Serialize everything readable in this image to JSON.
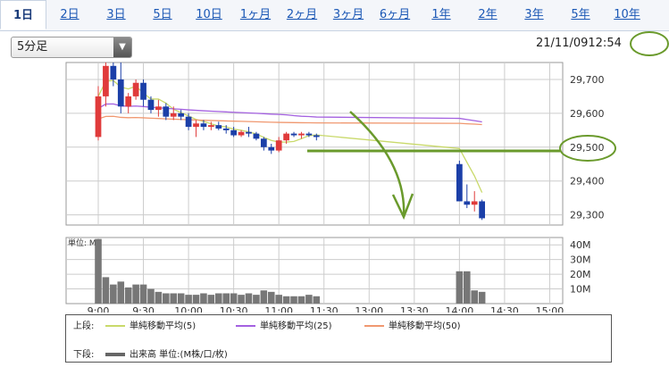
{
  "tabs": [
    "1日",
    "2日",
    "3日",
    "5日",
    "10日",
    "1ヶ月",
    "2ヶ月",
    "3ヶ月",
    "6ヶ月",
    "1年",
    "2年",
    "3年",
    "5年",
    "10年"
  ],
  "active_tab": "1日",
  "interval_select": {
    "value": "5分足",
    "arrow": "▼"
  },
  "datetime": {
    "date": "21/11/09",
    "time": "12:54"
  },
  "colors": {
    "up": "#e03b3b",
    "down": "#1b3fa8",
    "ma5": "#c9d96a",
    "ma25": "#a461e0",
    "ma50": "#f09870",
    "annotation": "#6a9a2c",
    "volume": "#777777"
  },
  "chart_data": {
    "type": "candlestick",
    "xlabels": [
      "9:00",
      "9:30",
      "10:00",
      "10:30",
      "11:00",
      "11:30",
      "13:00",
      "13:30",
      "14:00",
      "14:30",
      "15:00"
    ],
    "price_axis": {
      "ticks": [
        "29,300",
        "29,400",
        "29,500",
        "29,600",
        "29,700"
      ],
      "ylim": [
        29270,
        29750
      ]
    },
    "volume_axis": {
      "label": "単位: M",
      "ticks": [
        "10M",
        "20M",
        "30M",
        "40M"
      ],
      "ylim": [
        0,
        45
      ]
    },
    "candles": [
      [
        29530,
        29680,
        29520,
        29650
      ],
      [
        29650,
        29750,
        29620,
        29740
      ],
      [
        29740,
        29750,
        29680,
        29700
      ],
      [
        29700,
        29750,
        29600,
        29620
      ],
      [
        29620,
        29660,
        29600,
        29650
      ],
      [
        29650,
        29700,
        29640,
        29690
      ],
      [
        29690,
        29700,
        29620,
        29640
      ],
      [
        29640,
        29650,
        29600,
        29610
      ],
      [
        29610,
        29640,
        29590,
        29620
      ],
      [
        29620,
        29630,
        29580,
        29590
      ],
      [
        29590,
        29620,
        29580,
        29600
      ],
      [
        29600,
        29610,
        29580,
        29590
      ],
      [
        29590,
        29600,
        29550,
        29560
      ],
      [
        29560,
        29580,
        29530,
        29570
      ],
      [
        29570,
        29580,
        29550,
        29560
      ],
      [
        29560,
        29575,
        29550,
        29565
      ],
      [
        29565,
        29575,
        29550,
        29555
      ],
      [
        29555,
        29565,
        29540,
        29550
      ],
      [
        29550,
        29560,
        29530,
        29535
      ],
      [
        29535,
        29550,
        29530,
        29545
      ],
      [
        29545,
        29560,
        29530,
        29540
      ],
      [
        29540,
        29545,
        29520,
        29525
      ],
      [
        29525,
        29530,
        29490,
        29500
      ],
      [
        29500,
        29510,
        29480,
        29490
      ],
      [
        29490,
        29530,
        29485,
        29520
      ],
      [
        29520,
        29545,
        29510,
        29540
      ],
      [
        29540,
        29545,
        29530,
        29535
      ],
      [
        29535,
        29545,
        29525,
        29540
      ],
      [
        29540,
        29545,
        29530,
        29535
      ],
      [
        29535,
        29540,
        29520,
        29530
      ],
      [
        29450,
        29460,
        29340,
        29340
      ],
      [
        29340,
        29390,
        29320,
        29330
      ],
      [
        29330,
        29370,
        29310,
        29340
      ],
      [
        29340,
        29345,
        29285,
        29290
      ]
    ],
    "volume": [
      44,
      18,
      13,
      15,
      11,
      13,
      13,
      10,
      8,
      7,
      7,
      7,
      6,
      6,
      7,
      6,
      7,
      7,
      7,
      6,
      7,
      6,
      9,
      8,
      6,
      5,
      5,
      5,
      6,
      5,
      22,
      22,
      9,
      8
    ],
    "series": [
      {
        "name": "単純移動平均(5)"
      },
      {
        "name": "単純移動平均(25)"
      },
      {
        "name": "単純移動平均(50)"
      }
    ],
    "volume_series_name": "出来高 単位:(M株/口/枚)"
  },
  "legend": {
    "upper_label": "上段:",
    "lower_label": "下段:"
  }
}
